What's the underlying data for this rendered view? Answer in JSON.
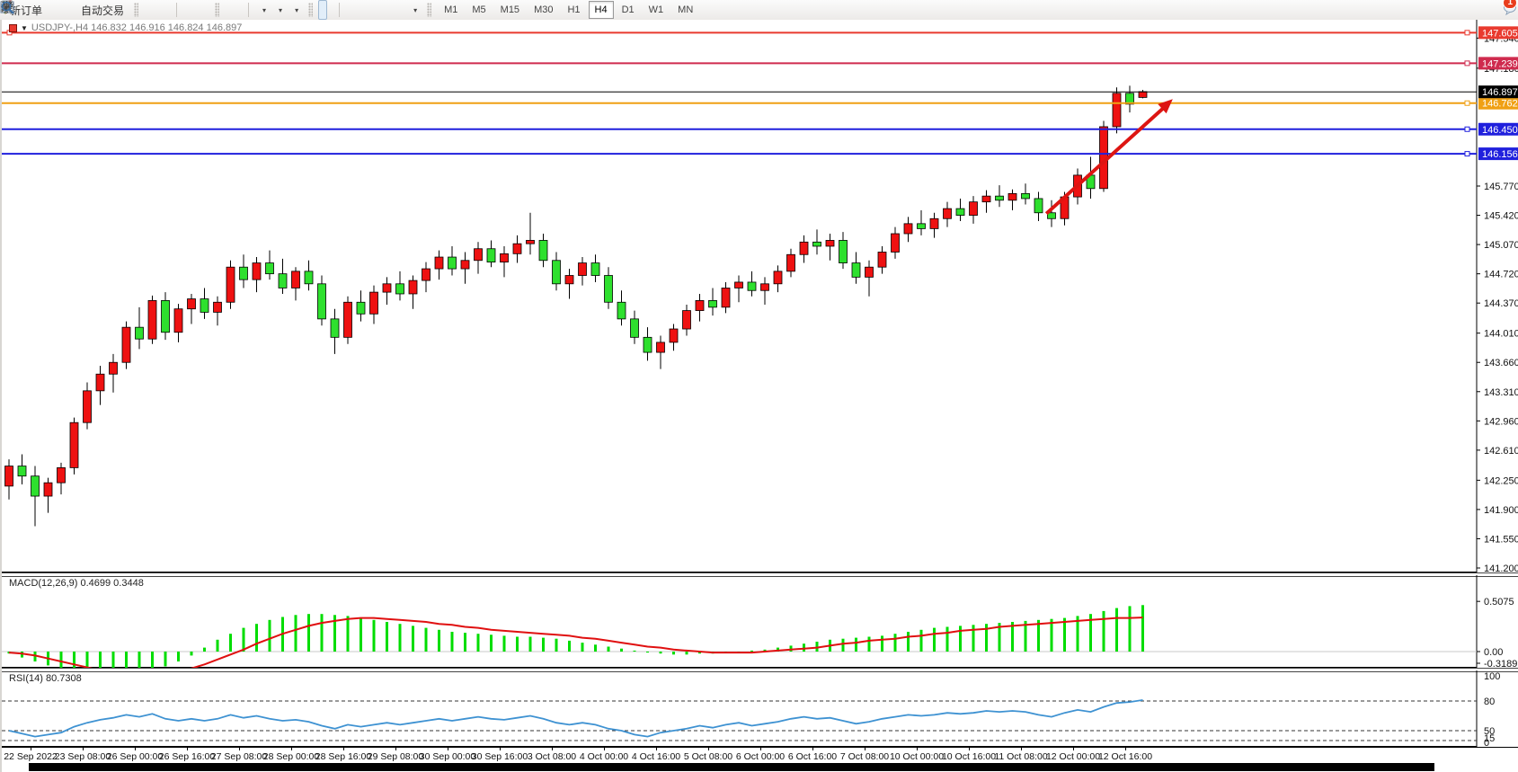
{
  "toolbar": {
    "new_order_label": "新订单",
    "autotrading_label": "自动交易",
    "timeframes": [
      "M1",
      "M5",
      "M15",
      "M30",
      "H1",
      "H4",
      "D1",
      "W1",
      "MN"
    ],
    "active_timeframe": "H4",
    "notification_count": "1"
  },
  "chart_data": {
    "type": "candlestick",
    "symbol": "USDJPY-",
    "timeframe": "H4",
    "title": "USDJPY-,H4  146.832 146.916 146.824 146.897",
    "ohlc_current": {
      "open": "146.832",
      "high": "146.916",
      "low": "146.824",
      "close": "146.897"
    },
    "colors": {
      "bull": "#ee1111",
      "bear": "#2ee02e",
      "outline": "#000000",
      "macd_histogram": "#00dd00",
      "macd_signal": "#e01010",
      "rsi_line": "#3e92d2",
      "arrow": "#dd1512"
    },
    "y_axis": {
      "visible_ticks": [
        "147.540",
        "147.180",
        "145.770",
        "145.420",
        "145.070",
        "144.720",
        "144.370",
        "144.010",
        "143.660",
        "143.310",
        "142.960",
        "142.610",
        "142.250",
        "141.900",
        "141.550",
        "141.200"
      ],
      "range": [
        141.2,
        147.8
      ]
    },
    "x_axis": {
      "labels": [
        "22 Sep 2022",
        "23 Sep 08:00",
        "26 Sep 00:00",
        "26 Sep 16:00",
        "27 Sep 08:00",
        "28 Sep 00:00",
        "28 Sep 16:00",
        "29 Sep 08:00",
        "30 Sep 00:00",
        "30 Sep 16:00",
        "3 Oct 08:00",
        "4 Oct 00:00",
        "4 Oct 16:00",
        "5 Oct 08:00",
        "6 Oct 00:00",
        "6 Oct 16:00",
        "7 Oct 08:00",
        "10 Oct 00:00",
        "10 Oct 16:00",
        "11 Oct 08:00",
        "12 Oct 00:00",
        "12 Oct 16:00"
      ]
    },
    "h_lines": [
      {
        "price": 147.605,
        "label": "147.605",
        "color": "#e93a2f"
      },
      {
        "price": 147.239,
        "label": "147.239",
        "color": "#cf2b4e"
      },
      {
        "price": 146.762,
        "label": "146.762",
        "color": "#f0a014"
      },
      {
        "price": 146.45,
        "label": "146.450",
        "color": "#2020dd"
      },
      {
        "price": 146.156,
        "label": "146.156",
        "color": "#2020dd"
      }
    ],
    "current_price": {
      "price": 146.897,
      "label": "146.897",
      "color": "#000000"
    },
    "annotation_arrow": {
      "x1_index": 79.6,
      "p1": 145.44,
      "x2_index": 89.3,
      "p2": 146.81
    },
    "candles": [
      [
        142.18,
        142.5,
        142.02,
        142.42
      ],
      [
        142.42,
        142.56,
        142.2,
        142.3
      ],
      [
        142.3,
        142.42,
        141.7,
        142.06
      ],
      [
        142.06,
        142.28,
        141.86,
        142.22
      ],
      [
        142.22,
        142.46,
        142.08,
        142.4
      ],
      [
        142.4,
        143.0,
        142.32,
        142.94
      ],
      [
        142.94,
        143.42,
        142.86,
        143.32
      ],
      [
        143.32,
        143.62,
        143.15,
        143.52
      ],
      [
        143.52,
        143.76,
        143.3,
        143.66
      ],
      [
        143.66,
        144.15,
        143.58,
        144.08
      ],
      [
        144.08,
        144.32,
        143.82,
        143.94
      ],
      [
        143.94,
        144.46,
        143.88,
        144.4
      ],
      [
        144.4,
        144.5,
        143.93,
        144.02
      ],
      [
        144.02,
        144.36,
        143.9,
        144.3
      ],
      [
        144.3,
        144.48,
        144.12,
        144.42
      ],
      [
        144.42,
        144.55,
        144.18,
        144.26
      ],
      [
        144.26,
        144.45,
        144.1,
        144.38
      ],
      [
        144.38,
        144.88,
        144.3,
        144.8
      ],
      [
        144.8,
        144.95,
        144.55,
        144.65
      ],
      [
        144.65,
        144.92,
        144.5,
        144.85
      ],
      [
        144.85,
        145.0,
        144.65,
        144.72
      ],
      [
        144.72,
        144.9,
        144.48,
        144.55
      ],
      [
        144.55,
        144.8,
        144.4,
        144.75
      ],
      [
        144.75,
        144.88,
        144.52,
        144.6
      ],
      [
        144.6,
        144.7,
        144.1,
        144.18
      ],
      [
        144.18,
        144.3,
        143.76,
        143.96
      ],
      [
        143.96,
        144.45,
        143.88,
        144.38
      ],
      [
        144.38,
        144.52,
        144.15,
        144.24
      ],
      [
        144.24,
        144.58,
        144.12,
        144.5
      ],
      [
        144.5,
        144.68,
        144.35,
        144.6
      ],
      [
        144.6,
        144.75,
        144.4,
        144.48
      ],
      [
        144.48,
        144.7,
        144.3,
        144.64
      ],
      [
        144.64,
        144.86,
        144.5,
        144.78
      ],
      [
        144.78,
        145.0,
        144.65,
        144.92
      ],
      [
        144.92,
        145.05,
        144.7,
        144.78
      ],
      [
        144.78,
        144.98,
        144.6,
        144.88
      ],
      [
        144.88,
        145.1,
        144.72,
        145.02
      ],
      [
        145.02,
        145.12,
        144.8,
        144.86
      ],
      [
        144.86,
        145.05,
        144.68,
        144.96
      ],
      [
        144.96,
        145.18,
        144.85,
        145.08
      ],
      [
        145.08,
        145.45,
        144.95,
        145.12
      ],
      [
        145.12,
        145.2,
        144.8,
        144.88
      ],
      [
        144.88,
        144.98,
        144.52,
        144.6
      ],
      [
        144.6,
        144.78,
        144.42,
        144.7
      ],
      [
        144.7,
        144.92,
        144.58,
        144.85
      ],
      [
        144.85,
        144.95,
        144.62,
        144.7
      ],
      [
        144.7,
        144.8,
        144.3,
        144.38
      ],
      [
        144.38,
        144.52,
        144.1,
        144.18
      ],
      [
        144.18,
        144.28,
        143.88,
        143.96
      ],
      [
        143.96,
        144.08,
        143.68,
        143.78
      ],
      [
        143.78,
        143.98,
        143.58,
        143.9
      ],
      [
        143.9,
        144.12,
        143.8,
        144.06
      ],
      [
        144.06,
        144.35,
        143.98,
        144.28
      ],
      [
        144.28,
        144.48,
        144.15,
        144.4
      ],
      [
        144.4,
        144.55,
        144.22,
        144.32
      ],
      [
        144.32,
        144.62,
        144.25,
        144.55
      ],
      [
        144.55,
        144.7,
        144.38,
        144.62
      ],
      [
        144.62,
        144.75,
        144.45,
        144.52
      ],
      [
        144.52,
        144.68,
        144.35,
        144.6
      ],
      [
        144.6,
        144.82,
        144.5,
        144.75
      ],
      [
        144.75,
        145.02,
        144.68,
        144.95
      ],
      [
        144.95,
        145.18,
        144.85,
        145.1
      ],
      [
        145.1,
        145.25,
        144.95,
        145.05
      ],
      [
        145.05,
        145.2,
        144.88,
        145.12
      ],
      [
        145.12,
        145.22,
        144.78,
        144.85
      ],
      [
        144.85,
        144.98,
        144.6,
        144.68
      ],
      [
        144.68,
        144.88,
        144.45,
        144.8
      ],
      [
        144.8,
        145.05,
        144.72,
        144.98
      ],
      [
        144.98,
        145.28,
        144.9,
        145.2
      ],
      [
        145.2,
        145.4,
        145.1,
        145.32
      ],
      [
        145.32,
        145.48,
        145.18,
        145.26
      ],
      [
        145.26,
        145.45,
        145.15,
        145.38
      ],
      [
        145.38,
        145.58,
        145.28,
        145.5
      ],
      [
        145.5,
        145.62,
        145.35,
        145.42
      ],
      [
        145.42,
        145.65,
        145.32,
        145.58
      ],
      [
        145.58,
        145.72,
        145.45,
        145.65
      ],
      [
        145.65,
        145.78,
        145.52,
        145.6
      ],
      [
        145.6,
        145.73,
        145.48,
        145.68
      ],
      [
        145.68,
        145.8,
        145.55,
        145.62
      ],
      [
        145.62,
        145.7,
        145.35,
        145.45
      ],
      [
        145.45,
        145.6,
        145.28,
        145.38
      ],
      [
        145.38,
        145.7,
        145.3,
        145.64
      ],
      [
        145.64,
        145.98,
        145.55,
        145.9
      ],
      [
        145.9,
        146.12,
        145.62,
        145.74
      ],
      [
        145.74,
        146.55,
        145.7,
        146.48
      ],
      [
        146.48,
        146.95,
        146.4,
        146.88
      ],
      [
        146.88,
        146.97,
        146.65,
        146.75
      ],
      [
        146.83,
        146.92,
        146.82,
        146.9
      ]
    ],
    "macd": {
      "label": "MACD(12,26,9) 0.4699 0.3448",
      "params": "12,26,9",
      "value": 0.4699,
      "signal_value": 0.3448,
      "axis_ticks": [
        "0.5075",
        "0.00",
        "-0.3189"
      ],
      "histogram": [
        -0.02,
        -0.06,
        -0.1,
        -0.14,
        -0.18,
        -0.22,
        -0.25,
        -0.27,
        -0.28,
        -0.27,
        -0.25,
        -0.2,
        -0.15,
        -0.1,
        -0.04,
        0.04,
        0.12,
        0.18,
        0.24,
        0.28,
        0.32,
        0.35,
        0.37,
        0.38,
        0.38,
        0.37,
        0.36,
        0.34,
        0.32,
        0.3,
        0.28,
        0.26,
        0.24,
        0.22,
        0.2,
        0.19,
        0.18,
        0.17,
        0.16,
        0.15,
        0.15,
        0.14,
        0.13,
        0.11,
        0.09,
        0.07,
        0.05,
        0.03,
        0.01,
        -0.01,
        -0.02,
        -0.03,
        -0.03,
        -0.02,
        -0.02,
        -0.01,
        0.0,
        0.01,
        0.02,
        0.04,
        0.06,
        0.08,
        0.1,
        0.12,
        0.13,
        0.14,
        0.15,
        0.16,
        0.18,
        0.2,
        0.22,
        0.24,
        0.25,
        0.26,
        0.27,
        0.28,
        0.29,
        0.3,
        0.31,
        0.32,
        0.33,
        0.34,
        0.36,
        0.38,
        0.41,
        0.44,
        0.46,
        0.47
      ],
      "signal": [
        -0.01,
        -0.02,
        -0.04,
        -0.07,
        -0.1,
        -0.13,
        -0.16,
        -0.19,
        -0.21,
        -0.23,
        -0.24,
        -0.23,
        -0.22,
        -0.2,
        -0.17,
        -0.13,
        -0.08,
        -0.03,
        0.02,
        0.08,
        0.13,
        0.18,
        0.22,
        0.26,
        0.29,
        0.31,
        0.33,
        0.34,
        0.34,
        0.33,
        0.32,
        0.31,
        0.3,
        0.28,
        0.27,
        0.25,
        0.24,
        0.22,
        0.21,
        0.2,
        0.19,
        0.18,
        0.17,
        0.16,
        0.14,
        0.13,
        0.11,
        0.09,
        0.07,
        0.05,
        0.04,
        0.02,
        0.01,
        0.0,
        -0.01,
        -0.01,
        -0.01,
        -0.01,
        0.0,
        0.01,
        0.02,
        0.03,
        0.04,
        0.06,
        0.08,
        0.09,
        0.11,
        0.12,
        0.13,
        0.15,
        0.16,
        0.18,
        0.19,
        0.21,
        0.22,
        0.23,
        0.25,
        0.26,
        0.27,
        0.28,
        0.29,
        0.3,
        0.31,
        0.32,
        0.33,
        0.34,
        0.34,
        0.345
      ]
    },
    "rsi": {
      "label": "RSI(14) 80.7308",
      "value": 80.7308,
      "levels": [
        80,
        50,
        15
      ],
      "axis_ticks": [
        "100",
        "80",
        "50",
        "15",
        "0"
      ],
      "values": [
        50,
        47,
        44,
        46,
        48,
        54,
        58,
        61,
        63,
        66,
        64,
        67,
        62,
        60,
        62,
        60,
        62,
        66,
        63,
        65,
        62,
        60,
        61,
        59,
        55,
        52,
        56,
        54,
        56,
        58,
        56,
        58,
        60,
        62,
        60,
        62,
        64,
        62,
        61,
        63,
        65,
        62,
        58,
        56,
        58,
        56,
        52,
        50,
        46,
        44,
        48,
        50,
        52,
        55,
        53,
        56,
        58,
        55,
        57,
        59,
        62,
        64,
        62,
        63,
        60,
        57,
        59,
        62,
        64,
        66,
        65,
        66,
        68,
        67,
        68,
        70,
        69,
        70,
        69,
        66,
        64,
        68,
        71,
        69,
        74,
        78,
        79,
        81
      ]
    }
  }
}
